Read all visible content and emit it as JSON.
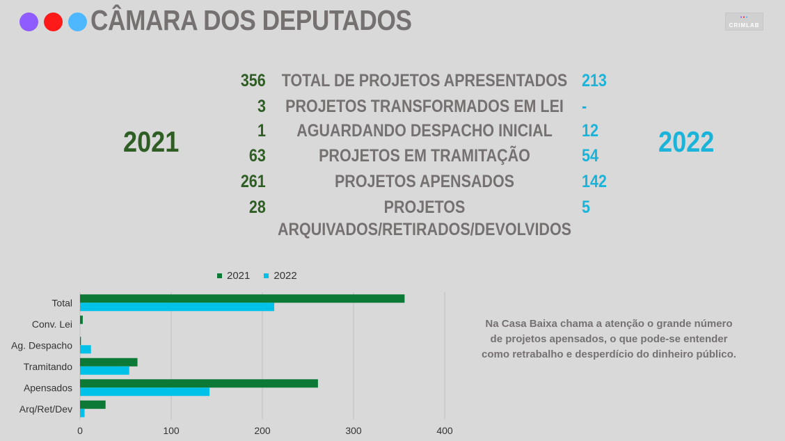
{
  "header": {
    "title": "CÂMARA DOS DEPUTADOS",
    "logo_text": "CRIMLAB",
    "dot_colors": [
      "#8f5cff",
      "#ff1a1a",
      "#4db8ff"
    ]
  },
  "colors": {
    "y2021": "#0c7a36",
    "y2021_text": "#2f5e24",
    "y2022": "#00c2e8",
    "y2022_text": "#1ab3d9"
  },
  "years": {
    "left": "2021",
    "right": "2022"
  },
  "stats": [
    {
      "v2021": "356",
      "label": "TOTAL DE PROJETOS APRESENTADOS",
      "label2": "",
      "v2022": "213"
    },
    {
      "v2021": "3",
      "label": "PROJETOS TRANSFORMADOS EM LEI",
      "label2": "",
      "v2022": "-"
    },
    {
      "v2021": "1",
      "label": "AGUARDANDO DESPACHO INICIAL",
      "label2": "",
      "v2022": "12"
    },
    {
      "v2021": "63",
      "label": "PROJETOS EM TRAMITAÇÃO",
      "label2": "",
      "v2022": "54"
    },
    {
      "v2021": "261",
      "label": "PROJETOS APENSADOS",
      "label2": "",
      "v2022": "142"
    },
    {
      "v2021": "28",
      "label": "PROJETOS",
      "label2": "ARQUIVADOS/RETIRADOS/DEVOLVIDOS",
      "v2022": "5"
    }
  ],
  "note": "Na  Casa Baixa chama a atenção o grande número de projetos apensados, o que pode-se entender como retrabalho e desperdício do dinheiro público.",
  "chart_data": {
    "type": "bar",
    "orientation": "horizontal",
    "categories": [
      "Total",
      "Conv. Lei",
      "Ag. Despacho",
      "Tramitando",
      "Apensados",
      "Arq/Ret/Dev"
    ],
    "series": [
      {
        "name": "2021",
        "values": [
          356,
          3,
          1,
          63,
          261,
          28
        ]
      },
      {
        "name": "2022",
        "values": [
          213,
          0,
          12,
          54,
          142,
          5
        ]
      }
    ],
    "xlim": [
      0,
      400
    ],
    "ticks": [
      0,
      100,
      200,
      300,
      400
    ],
    "grid": true,
    "legend": "top"
  }
}
